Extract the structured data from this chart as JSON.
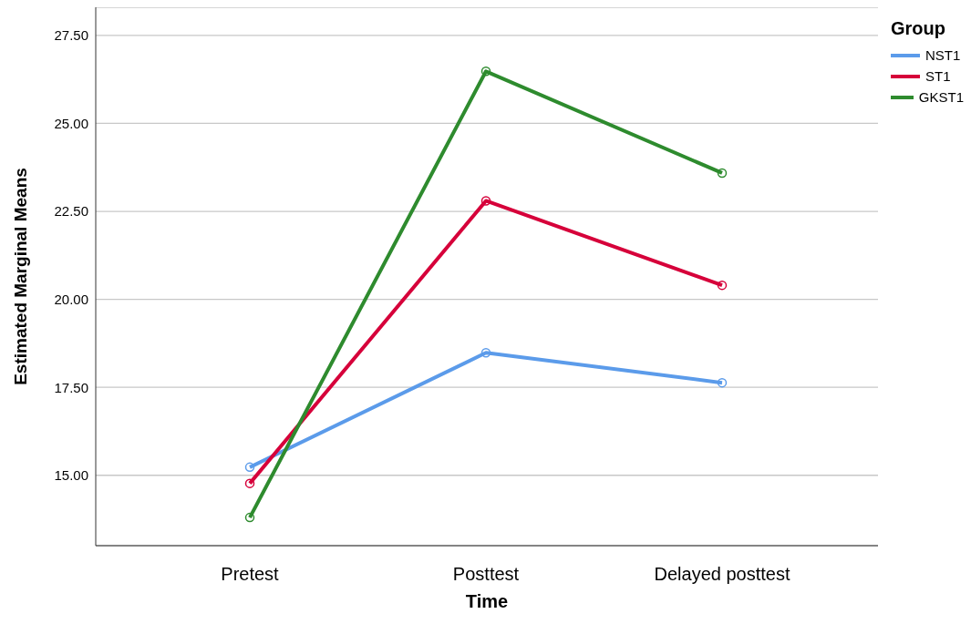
{
  "chart_data": {
    "type": "line",
    "xlabel": "Time",
    "ylabel": "Estimated Marginal Means",
    "legend_title": "Group",
    "categories": [
      "Pretest",
      "Posttest",
      "Delayed posttest"
    ],
    "series": [
      {
        "name": "NST1",
        "color": "#5b9bea",
        "values": [
          15.23,
          18.48,
          17.63
        ]
      },
      {
        "name": "ST1",
        "color": "#d6003a",
        "values": [
          14.77,
          22.8,
          20.4
        ]
      },
      {
        "name": "GKST1",
        "color": "#2e8b2e",
        "values": [
          13.8,
          26.48,
          23.59
        ]
      }
    ],
    "ylim": [
      13.0,
      28.3
    ],
    "yticks": [
      {
        "value": 15,
        "label": "15.00"
      },
      {
        "value": 17.5,
        "label": "17.50"
      },
      {
        "value": 20,
        "label": "20.00"
      },
      {
        "value": 22.5,
        "label": "22.50"
      },
      {
        "value": 25,
        "label": "25.00"
      },
      {
        "value": 27.5,
        "label": "27.50"
      }
    ],
    "grid": "y",
    "legend": "top right",
    "marker": "circle",
    "line_style": "solid"
  }
}
